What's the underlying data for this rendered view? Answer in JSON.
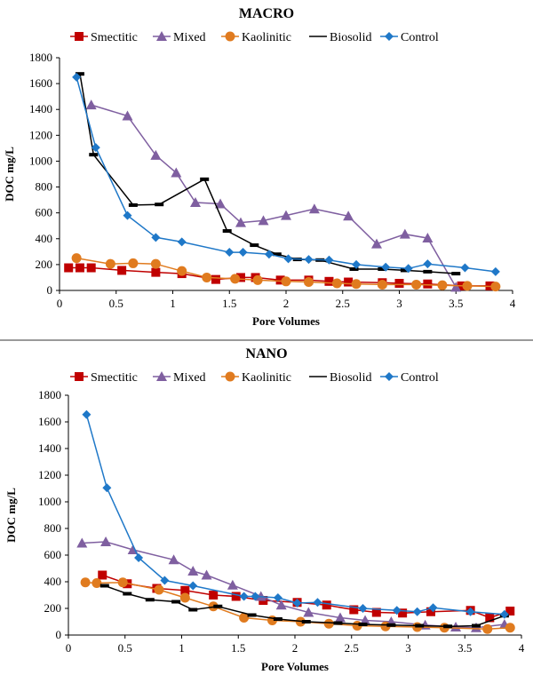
{
  "chart_data": [
    {
      "type": "line",
      "title": "MACRO",
      "xlabel": "Pore Volumes",
      "ylabel": "DOC mg/L",
      "xlim": [
        0,
        4
      ],
      "ylim": [
        0,
        1800
      ],
      "xticks": [
        0,
        0.5,
        1,
        1.5,
        2,
        2.5,
        3,
        3.5,
        4
      ],
      "yticks": [
        0,
        200,
        400,
        600,
        800,
        1000,
        1200,
        1400,
        1600,
        1800
      ],
      "grid": false,
      "legend": "top",
      "series": [
        {
          "name": "Smectitic",
          "color": "#c00000",
          "marker": "square",
          "lineOnly": false,
          "x": [
            0.08,
            0.18,
            0.28,
            0.55,
            0.85,
            1.08,
            1.38,
            1.6,
            1.73,
            1.95,
            2.2,
            2.38,
            2.55,
            2.85,
            3.0,
            3.25,
            3.55,
            3.8
          ],
          "y": [
            175,
            175,
            175,
            155,
            140,
            130,
            85,
            100,
            100,
            80,
            80,
            70,
            65,
            60,
            55,
            50,
            35,
            35
          ]
        },
        {
          "name": "Mixed",
          "color": "#7f5fa0",
          "marker": "triangle",
          "lineOnly": false,
          "x": [
            0.28,
            0.6,
            0.85,
            1.03,
            1.2,
            1.42,
            1.6,
            1.8,
            2.0,
            2.25,
            2.55,
            2.8,
            3.05,
            3.25,
            3.5
          ],
          "y": [
            1435,
            1350,
            1045,
            910,
            680,
            670,
            525,
            540,
            580,
            630,
            575,
            360,
            435,
            405,
            25
          ]
        },
        {
          "name": "Kaolinitic",
          "color": "#e07b1f",
          "marker": "circle",
          "lineOnly": false,
          "x": [
            0.15,
            0.45,
            0.65,
            0.85,
            1.08,
            1.3,
            1.55,
            1.75,
            2.0,
            2.2,
            2.45,
            2.62,
            2.85,
            3.15,
            3.38,
            3.6,
            3.85
          ],
          "y": [
            250,
            205,
            210,
            205,
            150,
            100,
            90,
            80,
            70,
            65,
            55,
            50,
            45,
            45,
            40,
            35,
            30
          ]
        },
        {
          "name": "Biosolid",
          "color": "#000000",
          "marker": "dash",
          "lineOnly": true,
          "x": [
            0.18,
            0.3,
            0.65,
            0.88,
            1.28,
            1.48,
            1.72,
            1.92,
            2.1,
            2.3,
            2.6,
            2.85,
            3.05,
            3.25,
            3.5
          ],
          "y": [
            1675,
            1050,
            660,
            665,
            860,
            460,
            350,
            280,
            240,
            235,
            165,
            165,
            155,
            145,
            130
          ]
        },
        {
          "name": "Control",
          "color": "#1f78c8",
          "marker": "diamond",
          "lineOnly": false,
          "x": [
            0.15,
            0.32,
            0.6,
            0.85,
            1.08,
            1.5,
            1.62,
            1.85,
            2.02,
            2.2,
            2.38,
            2.62,
            2.88,
            3.08,
            3.25,
            3.58,
            3.85
          ],
          "y": [
            1650,
            1105,
            580,
            410,
            375,
            295,
            295,
            280,
            245,
            240,
            235,
            200,
            180,
            170,
            205,
            175,
            145
          ]
        }
      ]
    },
    {
      "type": "line",
      "title": "NANO",
      "xlabel": "Pore Volumes",
      "ylabel": "DOC mg/L",
      "xlim": [
        0,
        4
      ],
      "ylim": [
        0,
        1800
      ],
      "xticks": [
        0,
        0.5,
        1,
        1.5,
        2,
        2.5,
        3,
        3.5,
        4
      ],
      "yticks": [
        0,
        200,
        400,
        600,
        800,
        1000,
        1200,
        1400,
        1600,
        1800
      ],
      "grid": false,
      "legend": "top",
      "series": [
        {
          "name": "Smectitic",
          "color": "#c00000",
          "marker": "square",
          "lineOnly": false,
          "x": [
            0.3,
            0.52,
            0.78,
            1.03,
            1.28,
            1.48,
            1.72,
            2.02,
            2.28,
            2.52,
            2.72,
            2.95,
            3.2,
            3.55,
            3.72,
            3.9
          ],
          "y": [
            450,
            385,
            350,
            335,
            300,
            290,
            260,
            245,
            225,
            190,
            170,
            165,
            175,
            185,
            130,
            180
          ]
        },
        {
          "name": "Mixed",
          "color": "#7f5fa0",
          "marker": "triangle",
          "lineOnly": false,
          "x": [
            0.12,
            0.33,
            0.57,
            0.93,
            1.1,
            1.22,
            1.45,
            1.7,
            1.88,
            2.12,
            2.4,
            2.62,
            2.85,
            3.15,
            3.42,
            3.6,
            3.85
          ],
          "y": [
            690,
            700,
            640,
            565,
            480,
            450,
            375,
            290,
            225,
            170,
            130,
            110,
            100,
            75,
            60,
            55,
            80
          ]
        },
        {
          "name": "Kaolinitic",
          "color": "#e07b1f",
          "marker": "circle",
          "lineOnly": false,
          "x": [
            0.15,
            0.25,
            0.48,
            0.8,
            1.03,
            1.28,
            1.55,
            1.8,
            2.05,
            2.3,
            2.55,
            2.8,
            3.08,
            3.32,
            3.7,
            3.9
          ],
          "y": [
            395,
            390,
            395,
            340,
            280,
            215,
            130,
            110,
            100,
            85,
            70,
            65,
            60,
            55,
            45,
            55
          ]
        },
        {
          "name": "Biosolid",
          "color": "#000000",
          "marker": "dash",
          "lineOnly": true,
          "x": [
            0.32,
            0.52,
            0.72,
            0.95,
            1.1,
            1.32,
            1.62,
            1.85,
            2.1,
            2.38,
            2.6,
            2.85,
            3.1,
            3.35,
            3.6,
            3.85
          ],
          "y": [
            370,
            310,
            265,
            250,
            190,
            215,
            150,
            120,
            100,
            90,
            80,
            75,
            70,
            65,
            70,
            145
          ]
        },
        {
          "name": "Control",
          "color": "#1f78c8",
          "marker": "diamond",
          "lineOnly": false,
          "x": [
            0.16,
            0.34,
            0.62,
            0.85,
            1.1,
            1.55,
            1.65,
            1.85,
            2.02,
            2.2,
            2.6,
            2.9,
            3.08,
            3.22,
            3.55,
            3.85
          ],
          "y": [
            1655,
            1105,
            580,
            410,
            370,
            290,
            290,
            280,
            240,
            245,
            200,
            185,
            175,
            205,
            175,
            155
          ]
        }
      ]
    }
  ]
}
